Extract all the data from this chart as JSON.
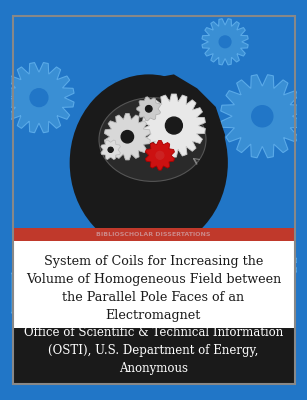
{
  "bg_color": "#2176c7",
  "white_panel_color": "#ffffff",
  "red_strip_color": "#c0392b",
  "red_strip_text": "BIBLIOSCHOLAR DISSERTATIONS",
  "red_strip_text_color": "#cc8888",
  "bottom_panel_color": "#1a1a1a",
  "title_text": "System of Coils for Increasing the\nVolume of Homogeneous Field between\nthe Parallel Pole Faces of an\nElectromagnet",
  "title_color": "#1a1a1a",
  "title_fontsize": 9.2,
  "author_text": "Office of Scientific & Technical Information\n(OSTI), U.S. Department of Energy,\nAnonymous",
  "author_color": "#ffffff",
  "author_fontsize": 8.5,
  "border_color": "#888888"
}
